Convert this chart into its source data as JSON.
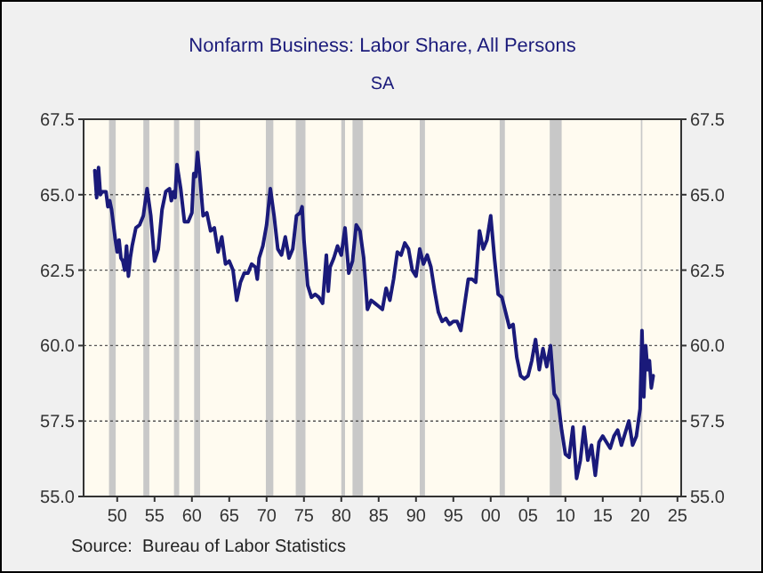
{
  "chart_data": {
    "type": "line",
    "title": "Nonfarm Business: Labor Share, All Persons",
    "subtitle": "SA",
    "annotations": [
      "Source:  Bureau of Labor Statistics"
    ],
    "x": [
      1947,
      1947.25,
      1947.5,
      1947.75,
      1948,
      1948.5,
      1948.75,
      1949,
      1949.25,
      1949.5,
      1949.75,
      1950,
      1950.25,
      1950.5,
      1950.75,
      1951,
      1951.25,
      1951.5,
      1951.75,
      1952,
      1952.5,
      1953,
      1953.5,
      1954,
      1954.5,
      1955,
      1955.5,
      1956,
      1956.5,
      1957,
      1957.25,
      1957.5,
      1957.75,
      1958,
      1958.5,
      1959,
      1959.5,
      1960,
      1960.25,
      1960.5,
      1960.75,
      1961,
      1961.5,
      1962,
      1962.5,
      1963,
      1963.5,
      1964,
      1964.5,
      1965,
      1965.5,
      1966,
      1966.5,
      1967,
      1967.5,
      1968,
      1968.5,
      1968.75,
      1969,
      1969.5,
      1970,
      1970.5,
      1971,
      1971.5,
      1972,
      1972.5,
      1973,
      1973.5,
      1974,
      1974.5,
      1974.75,
      1975,
      1975.5,
      1976,
      1976.5,
      1977,
      1977.5,
      1978,
      1978.25,
      1978.5,
      1979,
      1979.5,
      1980,
      1980.5,
      1981,
      1981.5,
      1982,
      1982.5,
      1983,
      1983.5,
      1984,
      1984.5,
      1985,
      1985.5,
      1986,
      1986.5,
      1987,
      1987.5,
      1988,
      1988.5,
      1989,
      1989.5,
      1990,
      1990.5,
      1991,
      1991.5,
      1992,
      1992.5,
      1993,
      1993.5,
      1994,
      1994.5,
      1995,
      1995.5,
      1996,
      1997,
      1997.5,
      1998,
      1998.5,
      1999,
      1999.5,
      2000,
      2000.5,
      2001,
      2001.5,
      2002,
      2002.5,
      2003,
      2003.5,
      2004,
      2004.5,
      2005,
      2005.5,
      2006,
      2006.5,
      2007,
      2007.5,
      2008,
      2008.5,
      2009,
      2009.5,
      2010,
      2010.5,
      2011,
      2011.5,
      2012,
      2012.5,
      2013,
      2013.5,
      2014,
      2014.5,
      2015,
      2015.5,
      2016,
      2016.5,
      2017,
      2017.5,
      2018,
      2018.5,
      2019,
      2019.5,
      2020,
      2020.25,
      2020.5,
      2020.75,
      2021,
      2021.25,
      2021.5,
      2021.75
    ],
    "series": [
      {
        "color": "#1a1a7a",
        "values": [
          65.8,
          64.9,
          65.9,
          65.0,
          65.1,
          65.1,
          64.6,
          64.8,
          64.5,
          64.0,
          63.5,
          63.1,
          63.5,
          62.9,
          62.8,
          62.5,
          63.3,
          62.3,
          62.9,
          63.3,
          63.9,
          64.0,
          64.3,
          65.2,
          64.3,
          62.8,
          63.2,
          64.5,
          65.1,
          65.2,
          64.8,
          65.1,
          64.9,
          66.0,
          65.2,
          64.1,
          64.1,
          64.4,
          65.7,
          65.6,
          66.4,
          65.8,
          64.3,
          64.4,
          63.8,
          63.9,
          63.1,
          63.6,
          62.7,
          62.8,
          62.5,
          61.5,
          62.1,
          62.4,
          62.4,
          62.7,
          62.6,
          62.2,
          62.9,
          63.3,
          64.0,
          65.2,
          64.3,
          63.2,
          63.0,
          63.6,
          62.9,
          63.2,
          64.3,
          64.4,
          64.6,
          63.5,
          62.0,
          61.6,
          61.7,
          61.6,
          61.4,
          63.0,
          61.8,
          62.6,
          62.9,
          63.3,
          63.0,
          63.9,
          62.4,
          62.8,
          64.0,
          63.8,
          62.9,
          61.2,
          61.5,
          61.4,
          61.3,
          61.2,
          61.9,
          61.5,
          62.2,
          63.1,
          63.0,
          63.4,
          63.2,
          62.5,
          62.3,
          63.2,
          62.7,
          63.0,
          62.6,
          61.8,
          61.1,
          60.8,
          60.9,
          60.7,
          60.8,
          60.8,
          60.5,
          62.2,
          62.2,
          62.1,
          63.8,
          63.2,
          63.5,
          64.3,
          62.9,
          61.7,
          61.6,
          61.1,
          60.6,
          60.7,
          59.6,
          59.0,
          58.9,
          59.0,
          59.5,
          60.2,
          59.2,
          59.9,
          59.3,
          60.0,
          58.4,
          58.2,
          57.2,
          56.4,
          56.3,
          57.3,
          55.6,
          56.2,
          57.3,
          56.2,
          56.7,
          55.7,
          56.8,
          57.0,
          56.8,
          56.6,
          57.0,
          57.2,
          56.7,
          57.1,
          57.5,
          56.7,
          57.0,
          57.9,
          60.5,
          58.3,
          60.0,
          59.2,
          59.5,
          58.6,
          59.0
        ]
      }
    ],
    "xlim": [
      1945.5,
      2025.5
    ],
    "xticks": [
      {
        "value": 1950,
        "label": "50"
      },
      {
        "value": 1955,
        "label": "55"
      },
      {
        "value": 1960,
        "label": "60"
      },
      {
        "value": 1965,
        "label": "65"
      },
      {
        "value": 1970,
        "label": "70"
      },
      {
        "value": 1975,
        "label": "75"
      },
      {
        "value": 1980,
        "label": "80"
      },
      {
        "value": 1985,
        "label": "85"
      },
      {
        "value": 1990,
        "label": "90"
      },
      {
        "value": 1995,
        "label": "95"
      },
      {
        "value": 2000,
        "label": "00"
      },
      {
        "value": 2005,
        "label": "05"
      },
      {
        "value": 2010,
        "label": "10"
      },
      {
        "value": 2015,
        "label": "15"
      },
      {
        "value": 2020,
        "label": "20"
      },
      {
        "value": 2025,
        "label": "25"
      }
    ],
    "ylim": [
      55,
      67.5
    ],
    "yticks": [
      {
        "value": 55,
        "label": "55.0"
      },
      {
        "value": 57.5,
        "label": "57.5"
      },
      {
        "value": 60,
        "label": "60.0"
      },
      {
        "value": 62.5,
        "label": "62.5"
      },
      {
        "value": 65,
        "label": "65.0"
      },
      {
        "value": 67.5,
        "label": "67.5"
      }
    ],
    "y2lim": [
      55,
      67.5
    ],
    "y2ticks": [
      {
        "value": 55,
        "label": "55.0"
      },
      {
        "value": 57.5,
        "label": "57.5"
      },
      {
        "value": 60,
        "label": "60.0"
      },
      {
        "value": 62.5,
        "label": "62.5"
      },
      {
        "value": 65,
        "label": "65.0"
      },
      {
        "value": 67.5,
        "label": "67.5"
      }
    ],
    "grid": "y",
    "line_style": "solid",
    "bands": [
      {
        "axis": "x",
        "from": 1948.9,
        "to": 1949.8,
        "color": "#c8c8c8"
      },
      {
        "axis": "x",
        "from": 1953.5,
        "to": 1954.3,
        "color": "#c8c8c8"
      },
      {
        "axis": "x",
        "from": 1957.6,
        "to": 1958.3,
        "color": "#c8c8c8"
      },
      {
        "axis": "x",
        "from": 1960.3,
        "to": 1961.1,
        "color": "#c8c8c8"
      },
      {
        "axis": "x",
        "from": 1969.9,
        "to": 1970.9,
        "color": "#c8c8c8"
      },
      {
        "axis": "x",
        "from": 1973.9,
        "to": 1975.2,
        "color": "#c8c8c8"
      },
      {
        "axis": "x",
        "from": 1980.0,
        "to": 1980.5,
        "color": "#c8c8c8"
      },
      {
        "axis": "x",
        "from": 1981.5,
        "to": 1982.9,
        "color": "#c8c8c8"
      },
      {
        "axis": "x",
        "from": 1990.5,
        "to": 1991.2,
        "color": "#c8c8c8"
      },
      {
        "axis": "x",
        "from": 2001.2,
        "to": 2001.9,
        "color": "#c8c8c8"
      },
      {
        "axis": "x",
        "from": 2007.9,
        "to": 2009.5,
        "color": "#c8c8c8"
      },
      {
        "axis": "x",
        "from": 2020.1,
        "to": 2020.3,
        "color": "#c8c8c8"
      }
    ]
  }
}
